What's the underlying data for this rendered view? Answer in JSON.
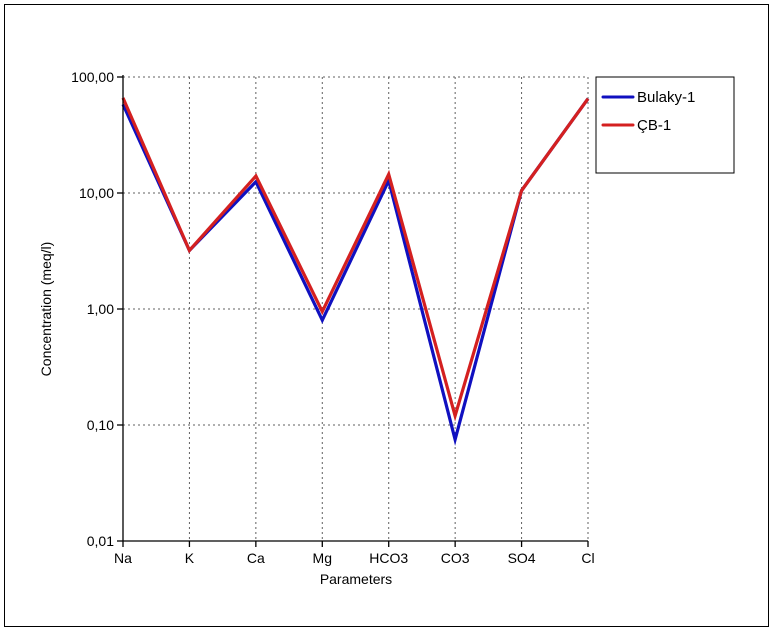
{
  "chart_data": {
    "type": "line",
    "title": "",
    "xlabel": "Parameters",
    "ylabel": "Concentration (meq/l)",
    "categories": [
      "Na",
      "K",
      "Ca",
      "Mg",
      "HCO3",
      "CO3",
      "SO4",
      "Cl"
    ],
    "y_scale": "log",
    "ylim": [
      0.01,
      100
    ],
    "y_ticks": [
      {
        "value": 100,
        "label": "100,00"
      },
      {
        "value": 10,
        "label": "10,00"
      },
      {
        "value": 1,
        "label": "1,00"
      },
      {
        "value": 0.1,
        "label": "0,10"
      },
      {
        "value": 0.01,
        "label": "0,01"
      }
    ],
    "grid": true,
    "legend_position": "right",
    "series": [
      {
        "name": "Bulaky-1",
        "color": "#1010c0",
        "values": [
          58,
          3.2,
          12.5,
          0.8,
          12.8,
          0.075,
          10.5,
          65
        ]
      },
      {
        "name": "ÇB-1",
        "color": "#d42020",
        "values": [
          66,
          3.2,
          14,
          0.95,
          14.5,
          0.12,
          10.5,
          65
        ]
      }
    ]
  }
}
